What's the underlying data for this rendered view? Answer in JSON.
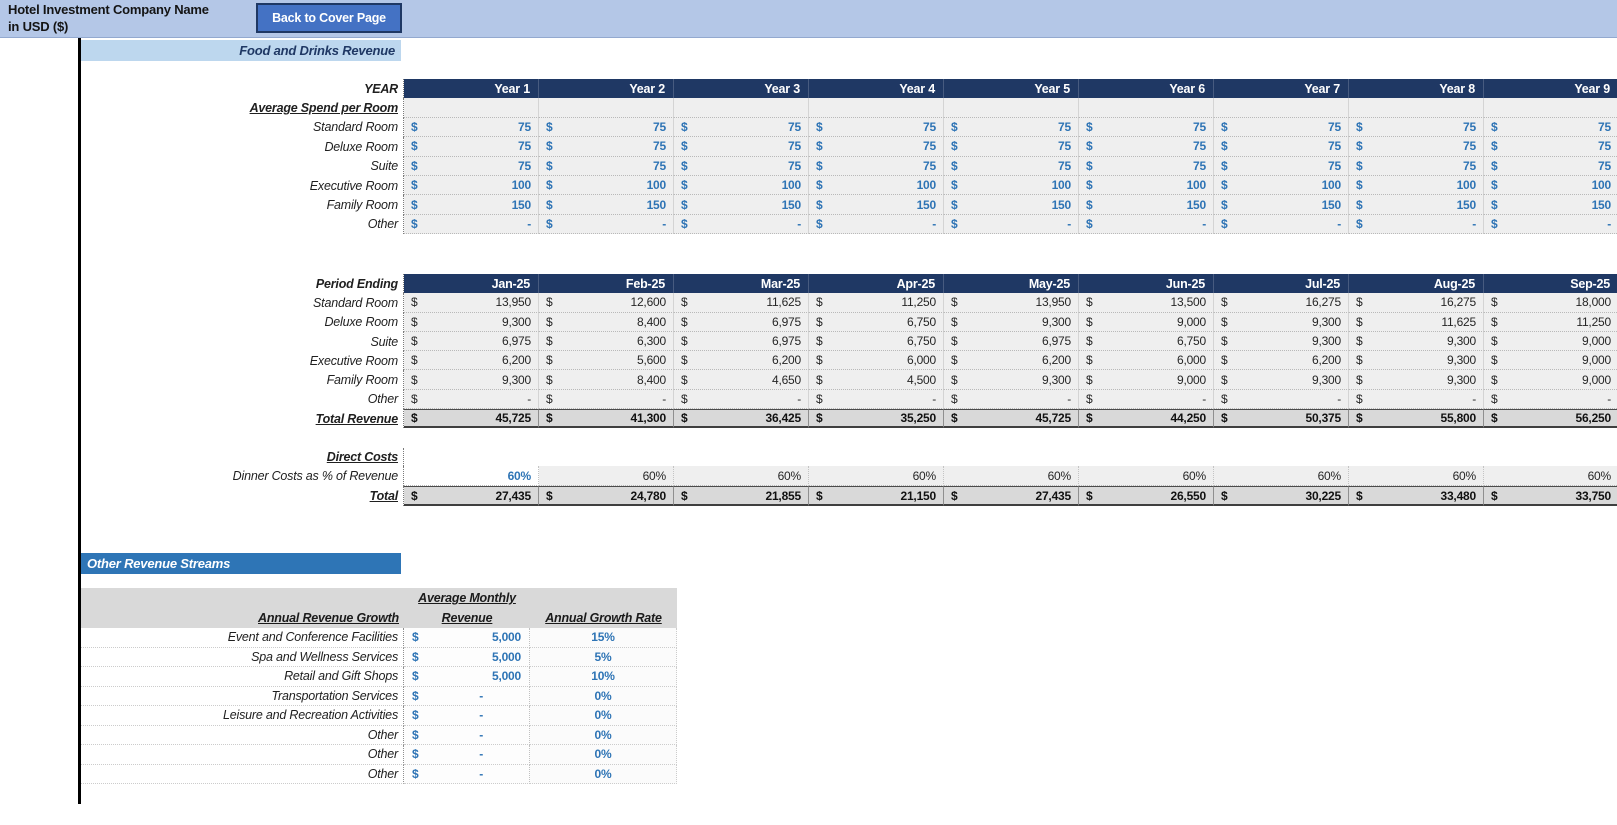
{
  "colors": {
    "navy": "#1f3864",
    "topbar": "#b4c7e7",
    "banner_light": "#bdd7ee",
    "banner_mid": "#2e75b6",
    "btn": "#4472c4",
    "blue": "#2e74b5",
    "cellbg": "#efefef",
    "graytotal": "#d9d9d9"
  },
  "currency": "$",
  "header": {
    "title_line1": "Hotel Investment Company Name",
    "title_line2": "in USD ($)",
    "back_button": "Back to Cover Page"
  },
  "section_title": "Food and Drinks Revenue",
  "spend_table": {
    "corner_label": "YEAR",
    "columns": [
      "Year 1",
      "Year 2",
      "Year 3",
      "Year 4",
      "Year 5",
      "Year 6",
      "Year 7",
      "Year 8",
      "Year 9"
    ],
    "subheader": "Average Spend per Room",
    "rows": [
      {
        "label": "Standard Room",
        "values": [
          "75",
          "75",
          "75",
          "75",
          "75",
          "75",
          "75",
          "75",
          "75"
        ]
      },
      {
        "label": "Deluxe Room",
        "values": [
          "75",
          "75",
          "75",
          "75",
          "75",
          "75",
          "75",
          "75",
          "75"
        ]
      },
      {
        "label": "Suite",
        "values": [
          "75",
          "75",
          "75",
          "75",
          "75",
          "75",
          "75",
          "75",
          "75"
        ]
      },
      {
        "label": "Executive Room",
        "values": [
          "100",
          "100",
          "100",
          "100",
          "100",
          "100",
          "100",
          "100",
          "100"
        ]
      },
      {
        "label": "Family Room",
        "values": [
          "150",
          "150",
          "150",
          "150",
          "150",
          "150",
          "150",
          "150",
          "150"
        ]
      },
      {
        "label": "Other",
        "values": [
          "-",
          "-",
          "-",
          "-",
          "-",
          "-",
          "-",
          "-",
          "-"
        ]
      }
    ]
  },
  "monthly_table": {
    "corner_label": "Period Ending",
    "columns": [
      "Jan-25",
      "Feb-25",
      "Mar-25",
      "Apr-25",
      "May-25",
      "Jun-25",
      "Jul-25",
      "Aug-25",
      "Sep-25"
    ],
    "rows": [
      {
        "label": "Standard Room",
        "values": [
          "13,950",
          "12,600",
          "11,625",
          "11,250",
          "13,950",
          "13,500",
          "16,275",
          "16,275",
          "18,000"
        ]
      },
      {
        "label": "Deluxe Room",
        "values": [
          "9,300",
          "8,400",
          "6,975",
          "6,750",
          "9,300",
          "9,000",
          "9,300",
          "11,625",
          "11,250"
        ]
      },
      {
        "label": "Suite",
        "values": [
          "6,975",
          "6,300",
          "6,975",
          "6,750",
          "6,975",
          "6,750",
          "9,300",
          "9,300",
          "9,000"
        ]
      },
      {
        "label": "Executive Room",
        "values": [
          "6,200",
          "5,600",
          "6,200",
          "6,000",
          "6,200",
          "6,000",
          "6,200",
          "9,300",
          "9,000"
        ]
      },
      {
        "label": "Family Room",
        "values": [
          "9,300",
          "8,400",
          "4,650",
          "4,500",
          "9,300",
          "9,000",
          "9,300",
          "9,300",
          "9,000"
        ]
      },
      {
        "label": "Other",
        "values": [
          "-",
          "-",
          "-",
          "-",
          "-",
          "-",
          "-",
          "-",
          "-"
        ]
      }
    ],
    "total_row": {
      "label": "Total Revenue",
      "values": [
        "45,725",
        "41,300",
        "36,425",
        "35,250",
        "45,725",
        "44,250",
        "50,375",
        "55,800",
        "56,250"
      ]
    }
  },
  "direct_costs": {
    "heading": "Direct Costs",
    "percent_row": {
      "label": "Dinner Costs as % of Revenue",
      "values": [
        "60%",
        "60%",
        "60%",
        "60%",
        "60%",
        "60%",
        "60%",
        "60%",
        "60%"
      ]
    },
    "total_row": {
      "label": "Total",
      "values": [
        "27,435",
        "24,780",
        "21,855",
        "21,150",
        "27,435",
        "26,550",
        "30,225",
        "33,480",
        "33,750"
      ]
    }
  },
  "other_revenue": {
    "banner": "Other Revenue Streams",
    "header_group": "Average Monthly",
    "col1_header": "Annual Revenue Growth",
    "col2_header": "Revenue",
    "col3_header": "Annual Growth Rate",
    "rows": [
      {
        "label": "Event and Conference Facilities",
        "revenue": "5,000",
        "growth": "15%"
      },
      {
        "label": "Spa and Wellness Services",
        "revenue": "5,000",
        "growth": "5%"
      },
      {
        "label": "Retail and Gift Shops",
        "revenue": "5,000",
        "growth": "10%"
      },
      {
        "label": "Transportation Services",
        "revenue": "-",
        "growth": "0%"
      },
      {
        "label": "Leisure and Recreation Activities",
        "revenue": "-",
        "growth": "0%"
      },
      {
        "label": "Other",
        "revenue": "-",
        "growth": "0%"
      },
      {
        "label": "Other",
        "revenue": "-",
        "growth": "0%"
      },
      {
        "label": "Other",
        "revenue": "-",
        "growth": "0%"
      }
    ]
  }
}
